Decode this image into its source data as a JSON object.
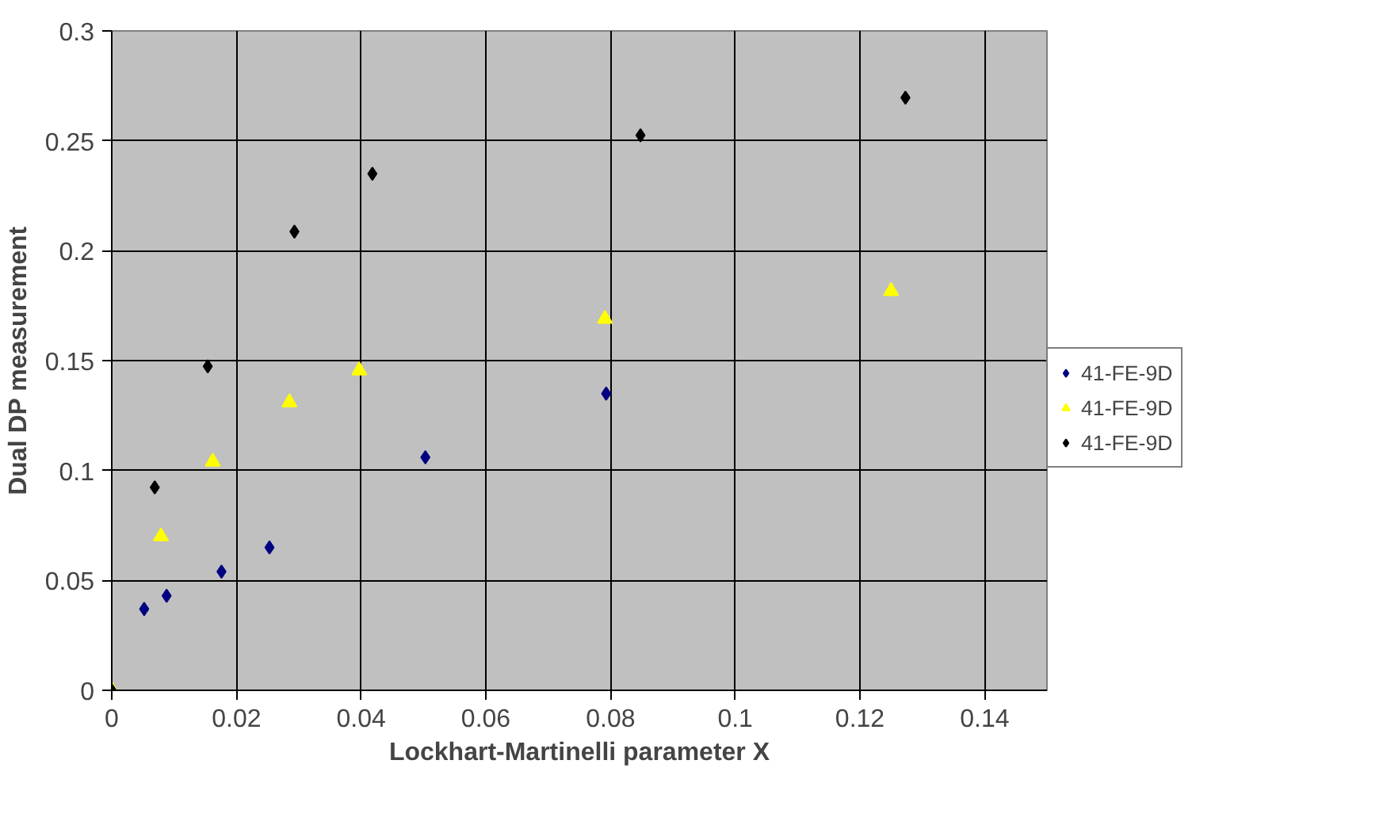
{
  "chart_data": {
    "type": "scatter",
    "xlabel": "Lockhart-Martinelli parameter X",
    "ylabel": "Dual DP measurement",
    "xlim": [
      0,
      0.15
    ],
    "ylim": [
      0,
      0.3
    ],
    "xticks": [
      0,
      0.02,
      0.04,
      0.06,
      0.08,
      0.1,
      0.12,
      0.14
    ],
    "yticks": [
      0,
      0.05,
      0.1,
      0.15,
      0.2,
      0.25,
      0.3
    ],
    "grid": true,
    "legend": "right",
    "series": [
      {
        "name": "41-FE-9D",
        "color": "#000080",
        "marker": "diamond",
        "x": [
          null,
          0.0052,
          0.0088,
          0.0176,
          0.0253,
          0.0503,
          0.0793
        ],
        "values": [
          null,
          0.037,
          0.043,
          0.054,
          0.065,
          0.106,
          0.135
        ]
      },
      {
        "name": "41-FE-9D",
        "color": "#ffff00",
        "marker": "triangle",
        "x": [
          0,
          0.0079,
          0.0162,
          0.0285,
          0.0397,
          0.0791,
          0.125
        ],
        "values": [
          0,
          0.07,
          0.104,
          0.131,
          0.1455,
          0.169,
          0.1816
        ]
      },
      {
        "name": "41-FE-9D",
        "color": "#000000",
        "marker": "diamond",
        "x": [
          0,
          0.0069,
          0.0154,
          0.0293,
          0.0418,
          0.0848,
          0.1273
        ],
        "values": [
          0,
          0.0923,
          0.1474,
          0.2087,
          0.235,
          0.2525,
          0.2696
        ]
      }
    ]
  }
}
